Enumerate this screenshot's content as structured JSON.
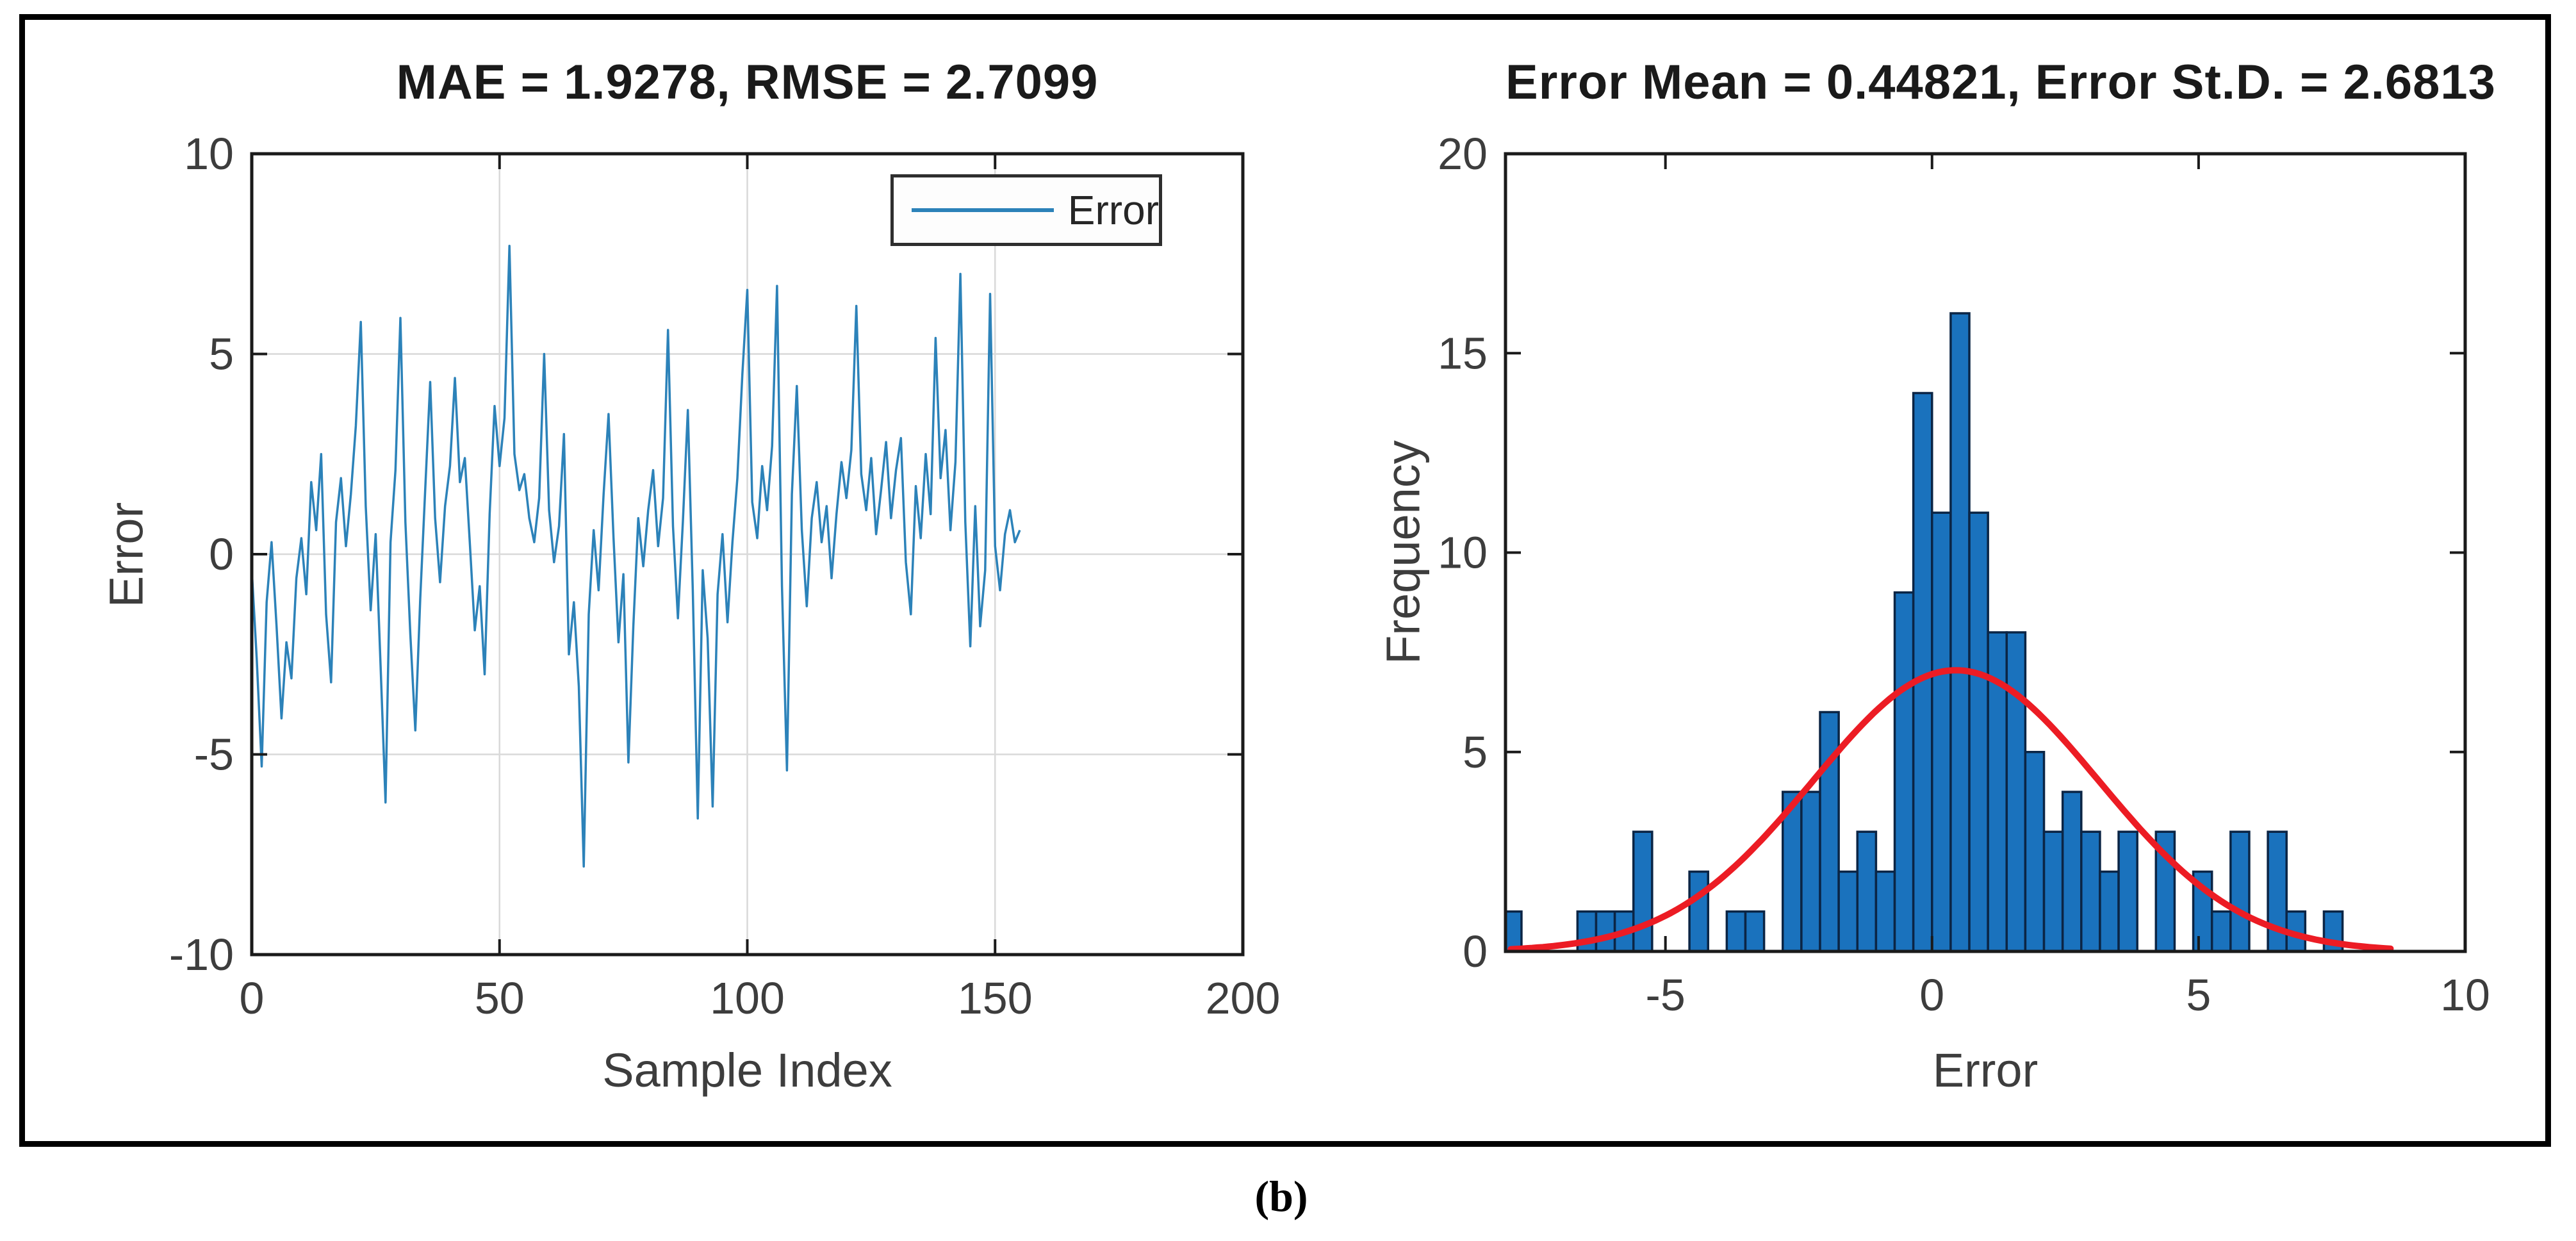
{
  "figure": {
    "caption": "(b)",
    "colors": {
      "line_blue": "#2C82B9",
      "bar_fill": "#1A72BD",
      "bar_edge": "#0B2545",
      "curve_red": "#EC1C24",
      "grid": "#D9D9D9",
      "axis": "#1A1A1A",
      "tick_text": "#3D3D3D"
    }
  },
  "chart_data": [
    {
      "type": "line",
      "title": "MAE = 1.9278, RMSE = 2.7099",
      "xlabel": "Sample Index",
      "ylabel": "Error",
      "legend": [
        "Error"
      ],
      "legend_position": "top-right",
      "grid": true,
      "xlim": [
        0,
        200
      ],
      "ylim": [
        -10,
        10
      ],
      "xticks": [
        0,
        50,
        100,
        150,
        200
      ],
      "yticks": [
        10,
        5,
        0,
        -5,
        -10
      ],
      "x_start": 0,
      "x_step": 1,
      "values": [
        -0.4,
        -2.6,
        -5.3,
        -1.2,
        0.3,
        -1.8,
        -4.1,
        -2.2,
        -3.1,
        -0.6,
        0.4,
        -1.0,
        1.8,
        0.6,
        2.5,
        -1.5,
        -3.2,
        0.8,
        1.9,
        0.2,
        1.5,
        3.2,
        5.8,
        1.2,
        -1.4,
        0.5,
        -2.8,
        -6.2,
        0.3,
        2.1,
        5.9,
        0.8,
        -2.0,
        -4.4,
        -1.1,
        1.6,
        4.3,
        0.9,
        -0.7,
        1.2,
        2.2,
        4.4,
        1.8,
        2.4,
        0.3,
        -1.9,
        -0.8,
        -3.0,
        1.0,
        3.7,
        2.2,
        3.4,
        7.7,
        2.5,
        1.6,
        2.0,
        0.9,
        0.3,
        1.4,
        5.0,
        1.1,
        -0.2,
        0.7,
        3.0,
        -2.5,
        -1.2,
        -3.3,
        -7.8,
        -1.5,
        0.6,
        -0.9,
        1.5,
        3.5,
        0.4,
        -2.2,
        -0.5,
        -5.2,
        -1.8,
        0.9,
        -0.3,
        1.1,
        2.1,
        0.2,
        1.4,
        5.6,
        0.7,
        -1.6,
        0.8,
        3.6,
        -0.9,
        -6.6,
        -0.4,
        -2.1,
        -6.3,
        -1.0,
        0.5,
        -1.7,
        0.3,
        1.9,
        4.5,
        6.6,
        1.3,
        0.4,
        2.2,
        1.1,
        2.7,
        6.7,
        -0.8,
        -5.4,
        1.5,
        4.2,
        0.6,
        -1.3,
        0.9,
        1.8,
        0.3,
        1.2,
        -0.6,
        1.0,
        2.3,
        1.4,
        2.6,
        6.2,
        2.0,
        1.1,
        2.4,
        0.5,
        1.6,
        2.8,
        0.9,
        2.1,
        2.9,
        -0.2,
        -1.5,
        1.7,
        0.4,
        2.5,
        1.0,
        5.4,
        1.9,
        3.1,
        0.6,
        2.3,
        7.0,
        0.8,
        -2.3,
        1.2,
        -1.8,
        -0.4,
        6.5,
        0.2,
        -0.9,
        0.5,
        1.1,
        0.3,
        0.6
      ]
    },
    {
      "type": "histogram",
      "title": "Error Mean = 0.44821, Error St.D. = 2.6813",
      "xlabel": "Error",
      "ylabel": "Frequency",
      "grid": false,
      "xlim": [
        -8,
        10
      ],
      "ylim": [
        0,
        20
      ],
      "xticks": [
        -5,
        0,
        5,
        10
      ],
      "yticks": [
        0,
        5,
        10,
        15,
        20
      ],
      "bin_start": -8.05,
      "bin_width": 0.35,
      "bin_counts": [
        1,
        0,
        0,
        0,
        1,
        1,
        1,
        3,
        0,
        0,
        2,
        0,
        1,
        1,
        0,
        4,
        4,
        6,
        2,
        3,
        2,
        9,
        14,
        11,
        16,
        11,
        8,
        8,
        5,
        3,
        4,
        3,
        2,
        3,
        0,
        3,
        0,
        2,
        1,
        3,
        0,
        3,
        1,
        0,
        1,
        0
      ],
      "normal_curve": {
        "mean": 0.44821,
        "std": 2.6813,
        "peak": 7.05,
        "x_range": [
          -7.9,
          8.6
        ]
      }
    }
  ]
}
